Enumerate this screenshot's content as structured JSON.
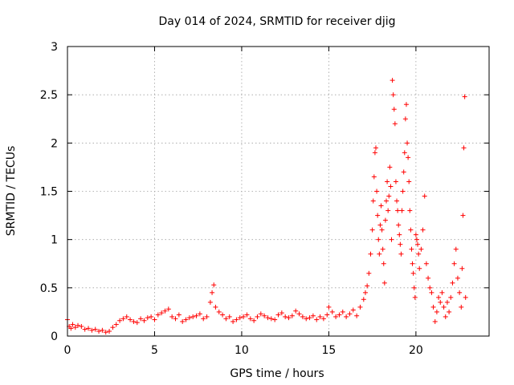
{
  "chart_data": {
    "type": "scatter",
    "title": "Day 014 of 2024, SRMTID for receiver djig",
    "xlabel": "GPS time / hours",
    "ylabel": "SRMTID / TECUs",
    "xlim": [
      0,
      24.2
    ],
    "ylim": [
      0,
      3
    ],
    "x_ticks": [
      0,
      5,
      10,
      15,
      20
    ],
    "x_tick_labels": [
      "0",
      "5",
      "10",
      "15",
      "20"
    ],
    "y_ticks": [
      0,
      0.5,
      1,
      1.5,
      2,
      2.5,
      3
    ],
    "y_tick_labels": [
      "0",
      "0.5",
      "1",
      "1.5",
      "2",
      "2.5",
      "3"
    ],
    "grid": true,
    "marker": "plus",
    "marker_color": "#ff0000",
    "series": [
      {
        "name": "SRMTID",
        "x": [
          0.0,
          0.1,
          0.2,
          0.3,
          0.45,
          0.6,
          0.8,
          1.0,
          1.2,
          1.4,
          1.6,
          1.8,
          2.0,
          2.2,
          2.4,
          2.6,
          2.8,
          3.0,
          3.2,
          3.4,
          3.6,
          3.8,
          4.0,
          4.2,
          4.4,
          4.6,
          4.8,
          5.0,
          5.2,
          5.4,
          5.6,
          5.8,
          6.0,
          6.2,
          6.4,
          6.6,
          6.8,
          7.0,
          7.2,
          7.4,
          7.6,
          7.8,
          8.0,
          8.2,
          8.3,
          8.4,
          8.5,
          8.7,
          8.9,
          9.1,
          9.3,
          9.5,
          9.7,
          9.9,
          10.1,
          10.3,
          10.5,
          10.7,
          10.9,
          11.1,
          11.3,
          11.5,
          11.7,
          11.9,
          12.1,
          12.3,
          12.5,
          12.7,
          12.9,
          13.1,
          13.3,
          13.5,
          13.7,
          13.9,
          14.1,
          14.3,
          14.5,
          14.7,
          14.9,
          15.0,
          15.2,
          15.4,
          15.6,
          15.8,
          16.0,
          16.2,
          16.4,
          16.6,
          16.8,
          17.0,
          17.1,
          17.2,
          17.3,
          17.4,
          17.5,
          17.55,
          17.6,
          17.65,
          17.7,
          17.75,
          17.8,
          17.85,
          17.9,
          17.95,
          18.0,
          18.05,
          18.1,
          18.15,
          18.2,
          18.25,
          18.3,
          18.35,
          18.4,
          18.45,
          18.5,
          18.55,
          18.6,
          18.65,
          18.7,
          18.75,
          18.8,
          18.85,
          18.9,
          18.95,
          19.0,
          19.05,
          19.1,
          19.15,
          19.2,
          19.25,
          19.3,
          19.35,
          19.4,
          19.45,
          19.5,
          19.55,
          19.6,
          19.65,
          19.7,
          19.75,
          19.8,
          19.85,
          19.9,
          19.95,
          20.0,
          20.05,
          20.1,
          20.15,
          20.2,
          20.3,
          20.4,
          20.5,
          20.6,
          20.7,
          20.8,
          20.9,
          21.0,
          21.1,
          21.2,
          21.3,
          21.4,
          21.5,
          21.6,
          21.7,
          21.8,
          21.9,
          22.0,
          22.1,
          22.2,
          22.3,
          22.4,
          22.5,
          22.6,
          22.65,
          22.7,
          22.75,
          22.8,
          22.85
        ],
        "y": [
          0.17,
          0.1,
          0.08,
          0.12,
          0.09,
          0.11,
          0.1,
          0.07,
          0.08,
          0.06,
          0.07,
          0.05,
          0.06,
          0.04,
          0.05,
          0.09,
          0.12,
          0.16,
          0.18,
          0.2,
          0.17,
          0.15,
          0.14,
          0.18,
          0.16,
          0.19,
          0.2,
          0.17,
          0.22,
          0.24,
          0.26,
          0.28,
          0.2,
          0.18,
          0.22,
          0.15,
          0.17,
          0.19,
          0.2,
          0.21,
          0.23,
          0.18,
          0.2,
          0.35,
          0.45,
          0.53,
          0.3,
          0.25,
          0.22,
          0.18,
          0.2,
          0.15,
          0.17,
          0.19,
          0.2,
          0.22,
          0.18,
          0.16,
          0.2,
          0.23,
          0.21,
          0.19,
          0.18,
          0.17,
          0.22,
          0.24,
          0.2,
          0.19,
          0.21,
          0.26,
          0.23,
          0.2,
          0.18,
          0.19,
          0.21,
          0.17,
          0.2,
          0.18,
          0.22,
          0.3,
          0.25,
          0.2,
          0.22,
          0.25,
          0.2,
          0.23,
          0.27,
          0.21,
          0.3,
          0.38,
          0.45,
          0.52,
          0.65,
          0.85,
          1.1,
          1.4,
          1.65,
          1.9,
          1.95,
          1.5,
          1.25,
          1.0,
          0.85,
          1.15,
          1.35,
          1.1,
          0.9,
          0.75,
          0.55,
          1.2,
          1.4,
          1.6,
          1.3,
          1.45,
          1.75,
          1.55,
          1.0,
          2.65,
          2.5,
          2.35,
          2.2,
          1.6,
          1.4,
          1.3,
          1.15,
          1.05,
          0.95,
          0.85,
          1.3,
          1.5,
          1.7,
          1.9,
          2.25,
          2.4,
          2.0,
          1.85,
          1.6,
          1.3,
          1.1,
          0.9,
          0.75,
          0.65,
          0.5,
          0.4,
          1.05,
          1.0,
          0.95,
          0.85,
          0.7,
          0.9,
          1.1,
          1.45,
          0.75,
          0.6,
          0.5,
          0.45,
          0.3,
          0.15,
          0.25,
          0.4,
          0.35,
          0.45,
          0.3,
          0.2,
          0.35,
          0.25,
          0.4,
          0.55,
          0.75,
          0.9,
          0.6,
          0.45,
          0.3,
          0.7,
          1.25,
          1.95,
          2.48,
          0.4
        ]
      }
    ]
  }
}
